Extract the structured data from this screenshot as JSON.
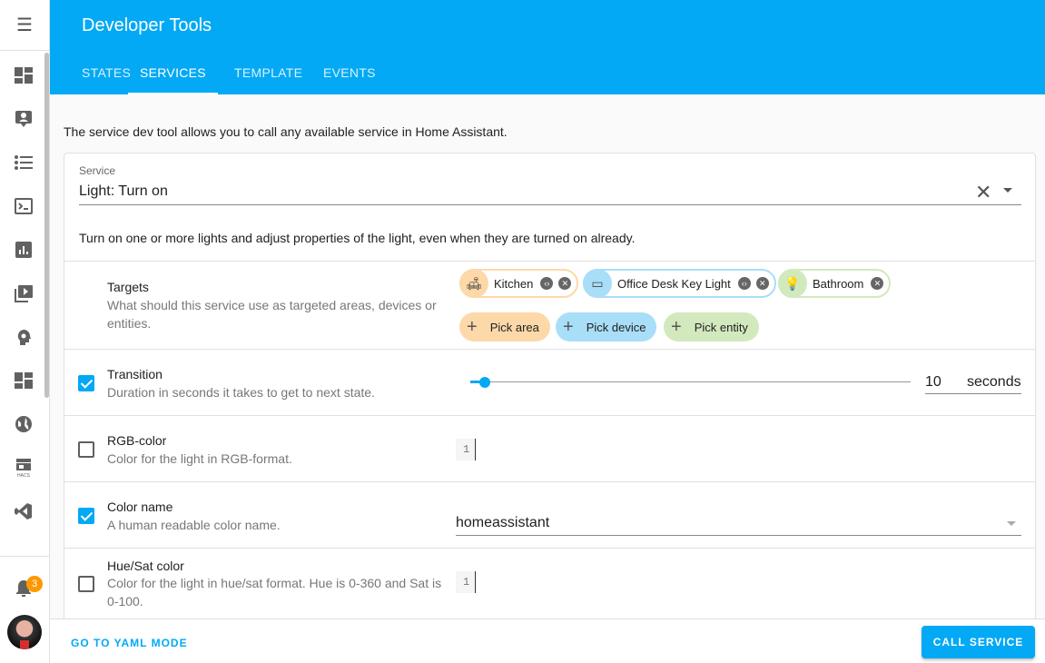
{
  "header": {
    "title": "Developer Tools",
    "tabs": [
      {
        "label": "STATES"
      },
      {
        "label": "SERVICES",
        "selected": true
      },
      {
        "label": "TEMPLATE"
      },
      {
        "label": "EVENTS"
      }
    ]
  },
  "sidebar": {
    "items": [
      "dashboard-icon",
      "map-icon",
      "logbook-icon",
      "terminal-icon",
      "history-icon",
      "media-icon",
      "brain-icon",
      "dashboard2-icon",
      "globe-icon",
      "hacs-icon",
      "vscode-icon"
    ],
    "notifications": "3"
  },
  "intro": "The service dev tool allows you to call any available service in Home Assistant.",
  "service": {
    "label": "Service",
    "value": "Light: Turn on",
    "description": "Turn on one or more lights and adjust properties of the light, even when they are turned on already."
  },
  "targets": {
    "name": "Targets",
    "description": "What should this service use as targeted areas, devices or entities.",
    "chips": [
      {
        "label": "Kitchen",
        "color": "#fdd8a8"
      },
      {
        "label": "Office Desk Key Light",
        "color": "#a8def8"
      },
      {
        "label": "Bathroom",
        "color": "#d2e9bd"
      }
    ],
    "pick": [
      "Pick area",
      "Pick device",
      "Pick entity"
    ]
  },
  "fields": [
    {
      "name": "Transition",
      "description": "Duration in seconds it takes to get to next state.",
      "checked": true,
      "value": "10",
      "unit": "seconds",
      "slider_fraction": 0.03
    },
    {
      "name": "RGB-color",
      "description": "Color for the light in RGB-format.",
      "checked": false,
      "line": "1"
    },
    {
      "name": "Color name",
      "description": "A human readable color name.",
      "checked": true,
      "value": "homeassistant"
    },
    {
      "name": "Hue/Sat color",
      "description": "Color for the light in hue/sat format. Hue is 0-360 and Sat is 0-100.",
      "checked": false,
      "line": "1"
    }
  ],
  "footer": {
    "yaml": "GO TO YAML MODE",
    "call": "CALL SERVICE"
  },
  "colors": {
    "accent": "#03a9f4",
    "badge": "#ff9800"
  }
}
